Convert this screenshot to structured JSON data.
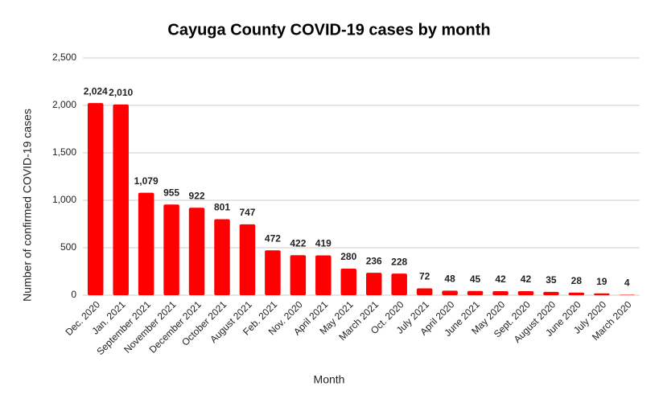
{
  "chart_data": {
    "type": "bar",
    "title": "Cayuga County COVID-19 cases by month",
    "x_label": "Month",
    "y_label": "Number of confirmed COVID-19 cases",
    "categories": [
      "Dec. 2020",
      "Jan. 2021",
      "September 2021",
      "November 2021",
      "December 2021",
      "October 2021",
      "August 2021",
      "Feb. 2021",
      "Nov. 2020",
      "April 2021",
      "May 2021",
      "March 2021",
      "Oct. 2020",
      "July 2021",
      "April 2020",
      "June 2021",
      "May 2020",
      "Sept. 2020",
      "August 2020",
      "June 2020",
      "July 2020",
      "March 2020"
    ],
    "values": [
      2024,
      2010,
      1079,
      955,
      922,
      801,
      747,
      472,
      422,
      419,
      280,
      236,
      228,
      72,
      48,
      45,
      42,
      42,
      35,
      28,
      19,
      4
    ],
    "value_labels": [
      "2,024",
      "2,010",
      "1,079",
      "955",
      "922",
      "801",
      "747",
      "472",
      "422",
      "419",
      "280",
      "236",
      "228",
      "72",
      "48",
      "45",
      "42",
      "42",
      "35",
      "28",
      "19",
      "4"
    ],
    "color": "#ff0000",
    "ylim": [
      0,
      2500
    ],
    "yticks": [
      0,
      500,
      {
        "value": 1000,
        "label": "1,000"
      },
      {
        "value": 1500,
        "label": "1,500"
      },
      {
        "value": 2000,
        "label": "2,000"
      },
      {
        "value": 2500,
        "label": "2,500"
      }
    ],
    "grid": true
  }
}
